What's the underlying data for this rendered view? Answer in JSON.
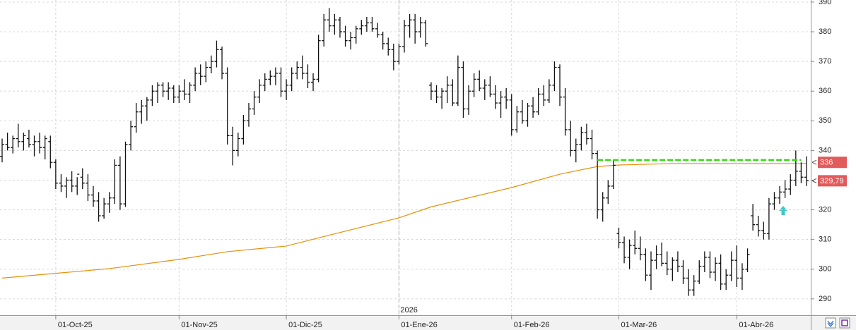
{
  "chart_data": {
    "type": "ohlc",
    "bar_color": "#111111",
    "ylim": [
      284.5,
      390.7
    ],
    "yticks": [
      290,
      300,
      310,
      320,
      330,
      340,
      350,
      360,
      370,
      380,
      390
    ],
    "grid": true,
    "x": [
      "2025-09-17",
      "2025-09-18",
      "2025-09-19",
      "2025-09-22",
      "2025-09-23",
      "2025-09-24",
      "2025-09-25",
      "2025-09-26",
      "2025-09-29",
      "2025-09-30",
      "2025-10-01",
      "2025-10-02",
      "2025-10-03",
      "2025-10-06",
      "2025-10-07",
      "2025-10-08",
      "2025-10-09",
      "2025-10-10",
      "2025-10-13",
      "2025-10-14",
      "2025-10-15",
      "2025-10-16",
      "2025-10-17",
      "2025-10-20",
      "2025-10-21",
      "2025-10-22",
      "2025-10-23",
      "2025-10-24",
      "2025-10-27",
      "2025-10-28",
      "2025-10-29",
      "2025-10-30",
      "2025-10-31",
      "2025-11-03",
      "2025-11-04",
      "2025-11-05",
      "2025-11-06",
      "2025-11-07",
      "2025-11-10",
      "2025-11-11",
      "2025-11-12",
      "2025-11-13",
      "2025-11-14",
      "2025-11-17",
      "2025-11-18",
      "2025-11-19",
      "2025-11-20",
      "2025-11-21",
      "2025-11-24",
      "2025-11-25",
      "2025-11-26",
      "2025-11-27",
      "2025-11-28",
      "2025-12-01",
      "2025-12-02",
      "2025-12-03",
      "2025-12-04",
      "2025-12-05",
      "2025-12-08",
      "2025-12-09",
      "2025-12-10",
      "2025-12-11",
      "2025-12-12",
      "2025-12-15",
      "2025-12-16",
      "2025-12-17",
      "2025-12-18",
      "2025-12-19",
      "2025-12-22",
      "2025-12-23",
      "2025-12-24",
      "2025-12-29",
      "2025-12-30",
      "2025-12-31",
      "2026-01-02",
      "2026-01-05",
      "2026-01-06",
      "2026-01-07",
      "2026-01-08",
      "2026-01-09",
      "2026-01-12",
      "2026-01-13",
      "2026-01-14",
      "2026-01-15",
      "2026-01-16",
      "2026-01-19",
      "2026-01-20",
      "2026-01-21",
      "2026-01-22",
      "2026-01-23",
      "2026-01-26",
      "2026-01-27",
      "2026-01-28",
      "2026-01-29",
      "2026-01-30",
      "2026-02-02",
      "2026-02-03",
      "2026-02-04",
      "2026-02-05",
      "2026-02-06",
      "2026-02-09",
      "2026-02-10",
      "2026-02-11",
      "2026-02-12",
      "2026-02-13",
      "2026-02-16",
      "2026-02-17",
      "2026-02-18",
      "2026-02-19",
      "2026-02-20",
      "2026-02-23",
      "2026-02-24",
      "2026-02-25",
      "2026-02-26",
      "2026-02-27",
      "2026-03-02",
      "2026-03-03",
      "2026-03-04",
      "2026-03-05",
      "2026-03-06",
      "2026-03-09",
      "2026-03-10",
      "2026-03-11",
      "2026-03-12",
      "2026-03-13",
      "2026-03-16",
      "2026-03-17",
      "2026-03-18",
      "2026-03-19",
      "2026-03-20",
      "2026-03-23",
      "2026-03-24",
      "2026-03-25",
      "2026-03-26",
      "2026-03-27",
      "2026-03-30",
      "2026-03-31",
      "2026-04-01",
      "2026-04-02",
      "2026-04-07",
      "2026-04-08",
      "2026-04-09",
      "2026-04-10",
      "2026-04-13",
      "2026-04-14",
      "2026-04-15",
      "2026-04-16",
      "2026-04-17",
      "2026-04-20",
      "2026-04-21",
      "2026-04-22"
    ],
    "ohlc": [
      [
        338,
        344,
        336,
        342
      ],
      [
        342,
        346,
        340,
        341
      ],
      [
        341,
        345,
        339,
        344
      ],
      [
        344,
        349,
        341,
        343
      ],
      [
        343,
        346,
        340,
        345
      ],
      [
        344,
        347,
        341,
        342
      ],
      [
        342,
        345,
        338,
        343
      ],
      [
        343,
        346,
        339,
        341
      ],
      [
        341,
        345,
        337,
        344
      ],
      [
        343,
        345,
        334,
        336
      ],
      [
        336,
        337,
        327,
        329
      ],
      [
        329,
        332,
        326,
        328
      ],
      [
        328,
        331,
        324,
        330
      ],
      [
        330,
        333,
        326,
        328
      ],
      [
        328,
        331,
        325,
        332
      ],
      [
        331,
        334,
        327,
        329
      ],
      [
        329,
        332,
        323,
        325
      ],
      [
        325,
        328,
        321,
        323
      ],
      [
        323,
        326,
        316,
        318
      ],
      [
        318,
        324,
        317,
        322
      ],
      [
        322,
        326,
        319,
        324
      ],
      [
        324,
        337,
        322,
        335
      ],
      [
        335,
        338,
        320,
        322
      ],
      [
        322,
        343,
        321,
        342
      ],
      [
        342,
        350,
        340,
        348
      ],
      [
        348,
        356,
        346,
        353
      ],
      [
        353,
        357,
        349,
        355
      ],
      [
        355,
        358,
        350,
        357
      ],
      [
        357,
        362,
        355,
        360
      ],
      [
        360,
        363,
        356,
        362
      ],
      [
        362,
        363,
        358,
        360
      ],
      [
        360,
        363,
        357,
        361
      ],
      [
        361,
        362,
        356,
        358
      ],
      [
        358,
        362,
        356,
        360
      ],
      [
        360,
        364,
        357,
        359
      ],
      [
        359,
        363,
        356,
        362
      ],
      [
        362,
        368,
        360,
        366
      ],
      [
        366,
        369,
        362,
        365
      ],
      [
        365,
        370,
        363,
        368
      ],
      [
        368,
        372,
        366,
        370
      ],
      [
        370,
        377,
        368,
        374
      ],
      [
        374,
        375,
        364,
        366
      ],
      [
        366,
        368,
        342,
        345
      ],
      [
        345,
        348,
        335,
        340
      ],
      [
        340,
        346,
        338,
        344
      ],
      [
        344,
        352,
        342,
        350
      ],
      [
        350,
        356,
        348,
        354
      ],
      [
        354,
        360,
        352,
        358
      ],
      [
        358,
        364,
        356,
        362
      ],
      [
        362,
        366,
        360,
        364
      ],
      [
        364,
        367,
        362,
        365
      ],
      [
        365,
        368,
        362,
        366
      ],
      [
        366,
        368,
        358,
        360
      ],
      [
        360,
        364,
        357,
        362
      ],
      [
        362,
        368,
        360,
        366
      ],
      [
        366,
        370,
        364,
        368
      ],
      [
        368,
        372,
        364,
        366
      ],
      [
        366,
        369,
        361,
        363
      ],
      [
        363,
        366,
        360,
        364
      ],
      [
        364,
        379,
        363,
        377
      ],
      [
        377,
        386,
        375,
        384
      ],
      [
        384,
        388,
        380,
        382
      ],
      [
        382,
        386,
        379,
        384
      ],
      [
        384,
        385,
        378,
        380
      ],
      [
        380,
        382,
        375,
        377
      ],
      [
        377,
        380,
        374,
        378
      ],
      [
        378,
        382,
        376,
        381
      ],
      [
        381,
        384,
        379,
        382
      ],
      [
        382,
        385,
        380,
        383
      ],
      [
        383,
        385,
        380,
        381
      ],
      [
        381,
        383,
        378,
        379
      ],
      [
        379,
        380,
        374,
        376
      ],
      [
        376,
        378,
        372,
        374
      ],
      [
        374,
        376,
        367,
        370
      ],
      [
        370,
        376,
        369,
        375
      ],
      [
        375,
        384,
        373,
        382
      ],
      [
        382,
        386,
        378,
        384
      ],
      [
        384,
        386,
        376,
        380
      ],
      [
        380,
        385,
        378,
        383
      ],
      [
        383,
        384,
        375,
        376
      ],
      [
        362,
        363,
        357,
        360
      ],
      [
        360,
        362,
        356,
        358
      ],
      [
        358,
        361,
        354,
        360
      ],
      [
        360,
        365,
        356,
        362
      ],
      [
        362,
        364,
        355,
        356
      ],
      [
        356,
        372,
        355,
        368
      ],
      [
        368,
        370,
        351,
        354
      ],
      [
        354,
        362,
        352,
        360
      ],
      [
        360,
        366,
        358,
        364
      ],
      [
        364,
        367,
        360,
        361
      ],
      [
        361,
        364,
        357,
        362
      ],
      [
        362,
        365,
        358,
        359
      ],
      [
        359,
        362,
        354,
        356
      ],
      [
        356,
        360,
        351,
        358
      ],
      [
        358,
        361,
        354,
        357
      ],
      [
        357,
        359,
        345,
        347
      ],
      [
        347,
        355,
        346,
        353
      ],
      [
        353,
        357,
        349,
        350
      ],
      [
        350,
        356,
        348,
        355
      ],
      [
        355,
        358,
        351,
        353
      ],
      [
        353,
        361,
        352,
        359
      ],
      [
        359,
        362,
        355,
        357
      ],
      [
        357,
        364,
        356,
        362
      ],
      [
        362,
        370,
        360,
        368
      ],
      [
        368,
        369,
        355,
        358
      ],
      [
        358,
        361,
        345,
        347
      ],
      [
        347,
        350,
        338,
        340
      ],
      [
        340,
        344,
        336,
        342
      ],
      [
        342,
        348,
        340,
        346
      ],
      [
        346,
        349,
        342,
        344
      ],
      [
        344,
        347,
        337,
        339
      ],
      [
        339,
        340,
        317,
        320
      ],
      [
        320,
        326,
        316,
        324
      ],
      [
        324,
        330,
        322,
        328
      ],
      [
        328,
        337,
        327,
        335
      ],
      [
        312,
        314,
        307,
        309
      ],
      [
        309,
        311,
        302,
        304
      ],
      [
        304,
        310,
        300,
        308
      ],
      [
        308,
        313,
        305,
        307
      ],
      [
        307,
        311,
        303,
        305
      ],
      [
        305,
        307,
        296,
        298
      ],
      [
        298,
        306,
        293,
        303
      ],
      [
        303,
        308,
        300,
        305
      ],
      [
        305,
        309,
        301,
        302
      ],
      [
        302,
        306,
        298,
        300
      ],
      [
        300,
        304,
        296,
        303
      ],
      [
        303,
        306,
        299,
        301
      ],
      [
        301,
        303,
        295,
        297
      ],
      [
        297,
        300,
        291,
        293
      ],
      [
        293,
        298,
        291,
        296
      ],
      [
        296,
        303,
        295,
        301
      ],
      [
        301,
        306,
        299,
        304
      ],
      [
        304,
        306,
        297,
        299
      ],
      [
        299,
        304,
        296,
        302
      ],
      [
        302,
        305,
        293,
        295
      ],
      [
        295,
        300,
        293,
        298
      ],
      [
        298,
        306,
        296,
        303
      ],
      [
        303,
        308,
        294,
        297
      ],
      [
        297,
        302,
        293,
        300
      ],
      [
        300,
        307,
        299,
        305
      ],
      [
        318,
        322,
        313,
        315
      ],
      [
        315,
        318,
        311,
        313
      ],
      [
        313,
        316,
        310,
        312
      ],
      [
        312,
        324,
        310,
        322
      ],
      [
        322,
        326,
        320,
        324
      ],
      [
        324,
        328,
        322,
        326
      ],
      [
        326,
        330,
        324,
        327
      ],
      [
        327,
        332,
        325,
        330
      ],
      [
        330,
        340,
        328,
        333
      ],
      [
        333,
        336,
        329,
        331
      ],
      [
        331,
        338,
        328,
        329.79
      ]
    ],
    "moving_average": {
      "color": "#e8900a",
      "x": [
        "2025-09-17",
        "2025-10-01",
        "2025-10-15",
        "2025-11-03",
        "2025-11-14",
        "2025-12-01",
        "2025-12-10",
        "2026-01-02",
        "2026-01-12",
        "2026-02-02",
        "2026-02-13",
        "2026-02-24",
        "2026-03-02",
        "2026-03-16",
        "2026-04-01",
        "2026-04-22"
      ],
      "values": [
        297.0,
        298.6,
        300.2,
        303.3,
        305.9,
        307.8,
        311.0,
        317.3,
        321.0,
        327.5,
        332.0,
        334.6,
        335.1,
        335.6,
        335.6,
        335.6
      ]
    },
    "level_line": {
      "value": 336.8,
      "x": [
        "2026-02-24",
        "2026-04-21"
      ],
      "color": "#33dd11"
    },
    "price_labels": [
      {
        "value": 336,
        "label": "336",
        "color": "#e25a5a"
      },
      {
        "value": 329.79,
        "label": "329,79",
        "color": "#e25a5a"
      }
    ],
    "xticks": [
      {
        "value": "2025-10-01",
        "label": "01-Oct-25"
      },
      {
        "value": "2025-11-03",
        "label": "01-Nov-25"
      },
      {
        "value": "2025-12-01",
        "label": "01-Dic-25"
      },
      {
        "value": "2026-01-02",
        "label": "01-Ene-26"
      },
      {
        "value": "2026-02-02",
        "label": "01-Feb-26"
      },
      {
        "value": "2026-03-02",
        "label": "01-Mar-26"
      },
      {
        "value": "2026-04-01",
        "label": "01-Abr-26"
      }
    ],
    "year_marker": {
      "x": "2026-01-02",
      "label": "2026"
    }
  }
}
